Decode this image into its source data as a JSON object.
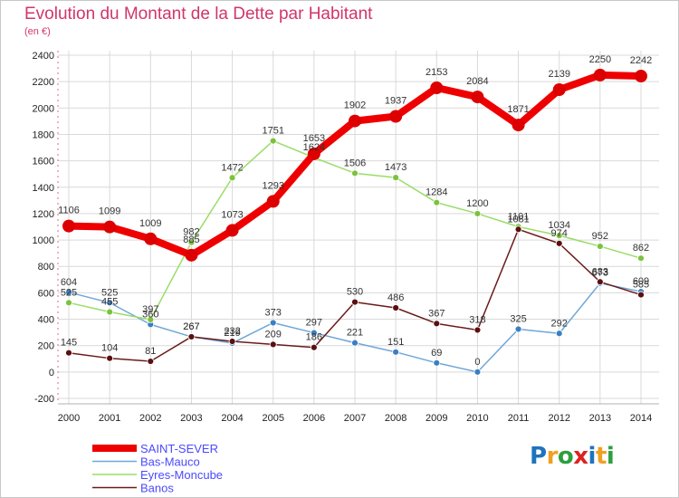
{
  "title": "Evolution du Montant de la Dette par Habitant",
  "subtitle": "(en €)",
  "logo_text": "Proxiti",
  "chart_data": {
    "type": "line",
    "title": "Evolution du Montant de la Dette par Habitant",
    "ylabel": "(en €)",
    "x": [
      2000,
      2001,
      2002,
      2003,
      2004,
      2005,
      2006,
      2007,
      2008,
      2009,
      2010,
      2011,
      2012,
      2013,
      2014
    ],
    "xtick_labels": [
      "2000",
      "2001",
      "2002",
      "2003",
      "2004",
      "2005",
      "2006",
      "2007",
      "2008",
      "2009",
      "2010",
      "2011",
      "2012",
      "2013",
      "2014"
    ],
    "ylim": [
      -200,
      2400
    ],
    "yticks": [
      -200,
      0,
      200,
      400,
      600,
      800,
      1000,
      1200,
      1400,
      1600,
      1800,
      2000,
      2200,
      2400
    ],
    "ytick_labels": [
      "-200",
      "0",
      "200",
      "400",
      "600",
      "800",
      "1000",
      "1200",
      "1400",
      "1600",
      "1800",
      "2000",
      "2200",
      "2400"
    ],
    "grid": true,
    "legend": "bottom-left",
    "series": [
      {
        "name": "SAINT-SEVER",
        "color": "#ee0000",
        "marker_color": "#dd0000",
        "values": [
          1106,
          1099,
          1009,
          885,
          1073,
          1293,
          1653,
          1902,
          1937,
          2153,
          2084,
          1871,
          2139,
          2250,
          2242
        ],
        "labels": [
          "1106",
          "1099",
          "1009",
          "885",
          "1073",
          "1293",
          "1653",
          "1902",
          "1937",
          "2153",
          "2084",
          "1871",
          "2139",
          "2250",
          "2242"
        ]
      },
      {
        "name": "Bas-Mauco",
        "color": "#6ea7d8",
        "marker_color": "#3b7fc0",
        "values": [
          604,
          525,
          360,
          267,
          219,
          373,
          297,
          221,
          151,
          69,
          0,
          325,
          292,
          673,
          609
        ],
        "labels": [
          "604",
          "525",
          "360",
          "267",
          "219",
          "373",
          "297",
          "221",
          "151",
          "69",
          "0",
          "325",
          "292",
          "673",
          "609"
        ]
      },
      {
        "name": "Eyres-Moncube",
        "color": "#99dd66",
        "marker_color": "#7cc23d",
        "values": [
          525,
          455,
          397,
          982,
          1472,
          1751,
          1624,
          1506,
          1473,
          1284,
          1200,
          1101,
          1034,
          952,
          862
        ],
        "labels": [
          "525",
          "455",
          "397",
          "982",
          "1472",
          "1751",
          "1624",
          "1506",
          "1473",
          "1284",
          "1200",
          "1101",
          "1034",
          "952",
          "862"
        ]
      },
      {
        "name": "Banos",
        "color": "#6b1a1a",
        "marker_color": "#5a1010",
        "values": [
          145,
          104,
          81,
          267,
          232,
          209,
          186,
          530,
          486,
          367,
          318,
          1081,
          974,
          683,
          585
        ],
        "labels": [
          "145",
          "104",
          "81",
          "267",
          "232",
          "209",
          "186",
          "530",
          "486",
          "367",
          "318",
          "1081",
          "974",
          "683",
          "585"
        ]
      }
    ]
  }
}
